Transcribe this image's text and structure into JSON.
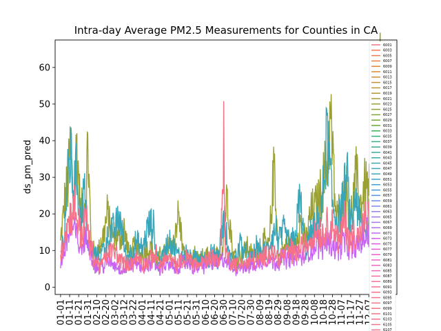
{
  "chart_data": {
    "type": "line",
    "title": "Intra-day Average PM2.5 Measurements for Counties in CA",
    "xlabel": "",
    "ylabel": "ds_pm_pred",
    "ylim": [
      -2,
      67.5
    ],
    "yticks": [
      0,
      10,
      20,
      30,
      40,
      50,
      60
    ],
    "xticks": [
      "01-01",
      "01-11",
      "01-21",
      "01-31",
      "02-10",
      "02-20",
      "03-02",
      "03-12",
      "03-22",
      "04-01",
      "04-11",
      "04-21",
      "05-01",
      "05-11",
      "05-21",
      "05-31",
      "06-10",
      "06-20",
      "06-30",
      "07-10",
      "07-20",
      "07-30",
      "08-09",
      "08-19",
      "08-29",
      "09-08",
      "09-18",
      "09-28",
      "10-08",
      "10-18",
      "10-28",
      "11-07",
      "11-17",
      "11-27",
      "12-07",
      "12-17"
    ],
    "x_range_days": [
      -6,
      371
    ],
    "grid": false,
    "legend_position": "right",
    "series_names": [
      "6001",
      "6003",
      "6005",
      "6007",
      "6009",
      "6011",
      "6013",
      "6015",
      "6017",
      "6019",
      "6021",
      "6023",
      "6025",
      "6027",
      "6029",
      "6031",
      "6033",
      "6035",
      "6037",
      "6039",
      "6041",
      "6043",
      "6045",
      "6047",
      "6049",
      "6051",
      "6053",
      "6055",
      "6057",
      "6059",
      "6061",
      "6063",
      "6065",
      "6067",
      "6069",
      "6071",
      "6073",
      "6075",
      "6077",
      "6079",
      "6081",
      "6083",
      "6085",
      "6087",
      "6089",
      "6091",
      "6093",
      "6095",
      "6097",
      "6099",
      "6101",
      "6103",
      "6105",
      "6107"
    ],
    "series_colors": [
      "#f77189",
      "#f7754f",
      "#f3794c",
      "#ec7f3b",
      "#e48431",
      "#dc8932",
      "#d18c32",
      "#c69132",
      "#bb9532",
      "#b09832",
      "#a59c31",
      "#9aa031",
      "#8ea331",
      "#80a731",
      "#6fab31",
      "#5aae31",
      "#36b34c",
      "#33b076",
      "#34ae8b",
      "#35ac97",
      "#36aba0",
      "#36a9a9",
      "#37a8b0",
      "#38a6b8",
      "#39a4c0",
      "#3aa1ca",
      "#3c9ed6",
      "#4099e3",
      "#5291ee",
      "#6b8af3",
      "#7e85f4",
      "#8e7ff4",
      "#9c79f4",
      "#aa72f4",
      "#b86bf4",
      "#c764f4",
      "#d65df2",
      "#e454e7",
      "#ec55dd",
      "#f35ad0",
      "#f55fc5",
      "#f563bb",
      "#f567b1",
      "#f56aa6",
      "#f66d9c",
      "#f66f92",
      "#f77189",
      "#f7718a",
      "#f77287",
      "#f77186",
      "#f77188",
      "#f7718b",
      "#f7718c",
      "#f7718d"
    ],
    "series_legend": {
      "shown": true
    },
    "series_approx": {
      "teal": {
        "color": "#38a6b8",
        "points": [
          [
            0,
            9
          ],
          [
            4,
            14
          ],
          [
            8,
            30
          ],
          [
            11,
            36
          ],
          [
            14,
            27
          ],
          [
            18,
            31
          ],
          [
            22,
            18
          ],
          [
            26,
            27
          ],
          [
            30,
            12
          ],
          [
            36,
            9
          ],
          [
            42,
            8
          ],
          [
            48,
            11
          ],
          [
            54,
            14
          ],
          [
            60,
            16
          ],
          [
            66,
            19
          ],
          [
            72,
            8
          ],
          [
            78,
            10
          ],
          [
            84,
            12
          ],
          [
            90,
            10
          ],
          [
            96,
            16
          ],
          [
            102,
            17
          ],
          [
            108,
            6
          ],
          [
            114,
            9
          ],
          [
            120,
            13
          ],
          [
            126,
            10
          ],
          [
            132,
            8
          ],
          [
            138,
            10
          ],
          [
            144,
            7
          ],
          [
            150,
            8
          ],
          [
            156,
            9
          ],
          [
            162,
            6
          ],
          [
            168,
            10
          ],
          [
            174,
            8
          ],
          [
            180,
            19
          ],
          [
            186,
            8
          ],
          [
            192,
            7
          ],
          [
            198,
            12
          ],
          [
            204,
            9
          ],
          [
            210,
            7
          ],
          [
            216,
            11
          ],
          [
            222,
            9
          ],
          [
            228,
            10
          ],
          [
            234,
            14
          ],
          [
            238,
            16
          ],
          [
            240,
            12
          ],
          [
            246,
            15
          ],
          [
            252,
            12
          ],
          [
            258,
            13
          ],
          [
            264,
            24
          ],
          [
            270,
            10
          ],
          [
            276,
            14
          ],
          [
            282,
            16
          ],
          [
            288,
            20
          ],
          [
            294,
            42
          ],
          [
            300,
            22
          ],
          [
            306,
            18
          ],
          [
            312,
            24
          ],
          [
            316,
            30
          ],
          [
            320,
            16
          ],
          [
            326,
            25
          ],
          [
            330,
            18
          ],
          [
            336,
            14
          ],
          [
            342,
            22
          ],
          [
            346,
            28
          ],
          [
            350,
            34
          ],
          [
            354,
            38
          ],
          [
            358,
            20
          ],
          [
            362,
            14
          ]
        ]
      },
      "olive": {
        "color": "#9aa031",
        "points": [
          [
            0,
            12
          ],
          [
            4,
            22
          ],
          [
            8,
            28
          ],
          [
            11,
            39
          ],
          [
            14,
            24
          ],
          [
            18,
            39
          ],
          [
            22,
            20
          ],
          [
            28,
            24
          ],
          [
            30,
            39
          ],
          [
            34,
            10
          ],
          [
            40,
            9
          ],
          [
            46,
            13
          ],
          [
            52,
            20
          ],
          [
            58,
            14
          ],
          [
            64,
            13
          ],
          [
            70,
            16
          ],
          [
            76,
            8
          ],
          [
            82,
            11
          ],
          [
            88,
            9
          ],
          [
            94,
            10
          ],
          [
            100,
            11
          ],
          [
            106,
            7
          ],
          [
            112,
            9
          ],
          [
            118,
            10
          ],
          [
            124,
            12
          ],
          [
            130,
            20
          ],
          [
            136,
            9
          ],
          [
            142,
            7
          ],
          [
            148,
            8
          ],
          [
            154,
            7
          ],
          [
            160,
            9
          ],
          [
            166,
            7
          ],
          [
            172,
            8
          ],
          [
            178,
            10
          ],
          [
            184,
            26
          ],
          [
            190,
            9
          ],
          [
            196,
            8
          ],
          [
            200,
            9
          ],
          [
            206,
            11
          ],
          [
            212,
            8
          ],
          [
            218,
            9
          ],
          [
            224,
            12
          ],
          [
            230,
            11
          ],
          [
            236,
            35
          ],
          [
            240,
            8
          ],
          [
            246,
            10
          ],
          [
            252,
            12
          ],
          [
            258,
            11
          ],
          [
            264,
            18
          ],
          [
            270,
            12
          ],
          [
            276,
            20
          ],
          [
            282,
            22
          ],
          [
            288,
            26
          ],
          [
            294,
            35
          ],
          [
            298,
            46
          ],
          [
            304,
            18
          ],
          [
            310,
            22
          ],
          [
            316,
            26
          ],
          [
            320,
            18
          ],
          [
            326,
            30
          ],
          [
            330,
            22
          ],
          [
            336,
            28
          ],
          [
            342,
            26
          ],
          [
            346,
            38
          ],
          [
            350,
            46
          ],
          [
            354,
            58
          ],
          [
            358,
            28
          ],
          [
            362,
            22
          ]
        ]
      },
      "pink": {
        "color": "#f77189",
        "points": [
          [
            0,
            8
          ],
          [
            3,
            12
          ],
          [
            6,
            16
          ],
          [
            9,
            18
          ],
          [
            12,
            20
          ],
          [
            16,
            22
          ],
          [
            20,
            17
          ],
          [
            24,
            14
          ],
          [
            28,
            20
          ],
          [
            32,
            12
          ],
          [
            38,
            7
          ],
          [
            44,
            6
          ],
          [
            50,
            8
          ],
          [
            56,
            10
          ],
          [
            62,
            9
          ],
          [
            68,
            7
          ],
          [
            74,
            6
          ],
          [
            80,
            7
          ],
          [
            86,
            8
          ],
          [
            92,
            6
          ],
          [
            98,
            7
          ],
          [
            104,
            9
          ],
          [
            110,
            6
          ],
          [
            116,
            8
          ],
          [
            122,
            7
          ],
          [
            128,
            6
          ],
          [
            134,
            7
          ],
          [
            140,
            8
          ],
          [
            146,
            7
          ],
          [
            152,
            6
          ],
          [
            158,
            7
          ],
          [
            164,
            8
          ],
          [
            170,
            8
          ],
          [
            176,
            7
          ],
          [
            180,
            39
          ],
          [
            182,
            9
          ],
          [
            188,
            7
          ],
          [
            194,
            6
          ],
          [
            200,
            7
          ],
          [
            206,
            6
          ],
          [
            212,
            8
          ],
          [
            218,
            7
          ],
          [
            224,
            8
          ],
          [
            230,
            10
          ],
          [
            236,
            9
          ],
          [
            242,
            8
          ],
          [
            248,
            9
          ],
          [
            254,
            10
          ],
          [
            260,
            9
          ],
          [
            266,
            11
          ],
          [
            272,
            12
          ],
          [
            278,
            14
          ],
          [
            284,
            16
          ],
          [
            290,
            14
          ],
          [
            296,
            18
          ],
          [
            302,
            16
          ],
          [
            308,
            12
          ],
          [
            314,
            20
          ],
          [
            318,
            12
          ],
          [
            324,
            15
          ],
          [
            330,
            14
          ],
          [
            336,
            18
          ],
          [
            342,
            20
          ],
          [
            346,
            24
          ],
          [
            350,
            30
          ],
          [
            354,
            44
          ],
          [
            358,
            20
          ],
          [
            362,
            16
          ]
        ]
      },
      "violet": {
        "color": "#c764f4",
        "points": [
          [
            0,
            6
          ],
          [
            4,
            10
          ],
          [
            8,
            14
          ],
          [
            12,
            16
          ],
          [
            16,
            15
          ],
          [
            20,
            12
          ],
          [
            24,
            11
          ],
          [
            30,
            14
          ],
          [
            36,
            7
          ],
          [
            42,
            5
          ],
          [
            48,
            6
          ],
          [
            54,
            7
          ],
          [
            60,
            6
          ],
          [
            66,
            5
          ],
          [
            72,
            5
          ],
          [
            78,
            6
          ],
          [
            84,
            7
          ],
          [
            90,
            5
          ],
          [
            96,
            6
          ],
          [
            102,
            7
          ],
          [
            108,
            5
          ],
          [
            114,
            6
          ],
          [
            120,
            6
          ],
          [
            126,
            5
          ],
          [
            132,
            6
          ],
          [
            138,
            7
          ],
          [
            144,
            6
          ],
          [
            150,
            5
          ],
          [
            156,
            6
          ],
          [
            162,
            6
          ],
          [
            168,
            7
          ],
          [
            174,
            6
          ],
          [
            180,
            8
          ],
          [
            186,
            6
          ],
          [
            192,
            5
          ],
          [
            198,
            6
          ],
          [
            204,
            5
          ],
          [
            210,
            6
          ],
          [
            216,
            6
          ],
          [
            222,
            7
          ],
          [
            228,
            8
          ],
          [
            234,
            7
          ],
          [
            240,
            7
          ],
          [
            246,
            8
          ],
          [
            252,
            8
          ],
          [
            258,
            9
          ],
          [
            264,
            8
          ],
          [
            270,
            9
          ],
          [
            276,
            10
          ],
          [
            282,
            12
          ],
          [
            288,
            11
          ],
          [
            294,
            13
          ],
          [
            300,
            12
          ],
          [
            306,
            10
          ],
          [
            312,
            13
          ],
          [
            318,
            10
          ],
          [
            324,
            11
          ],
          [
            330,
            12
          ],
          [
            336,
            14
          ],
          [
            342,
            16
          ],
          [
            346,
            18
          ],
          [
            350,
            22
          ],
          [
            354,
            28
          ],
          [
            358,
            16
          ],
          [
            362,
            12
          ]
        ]
      }
    }
  }
}
